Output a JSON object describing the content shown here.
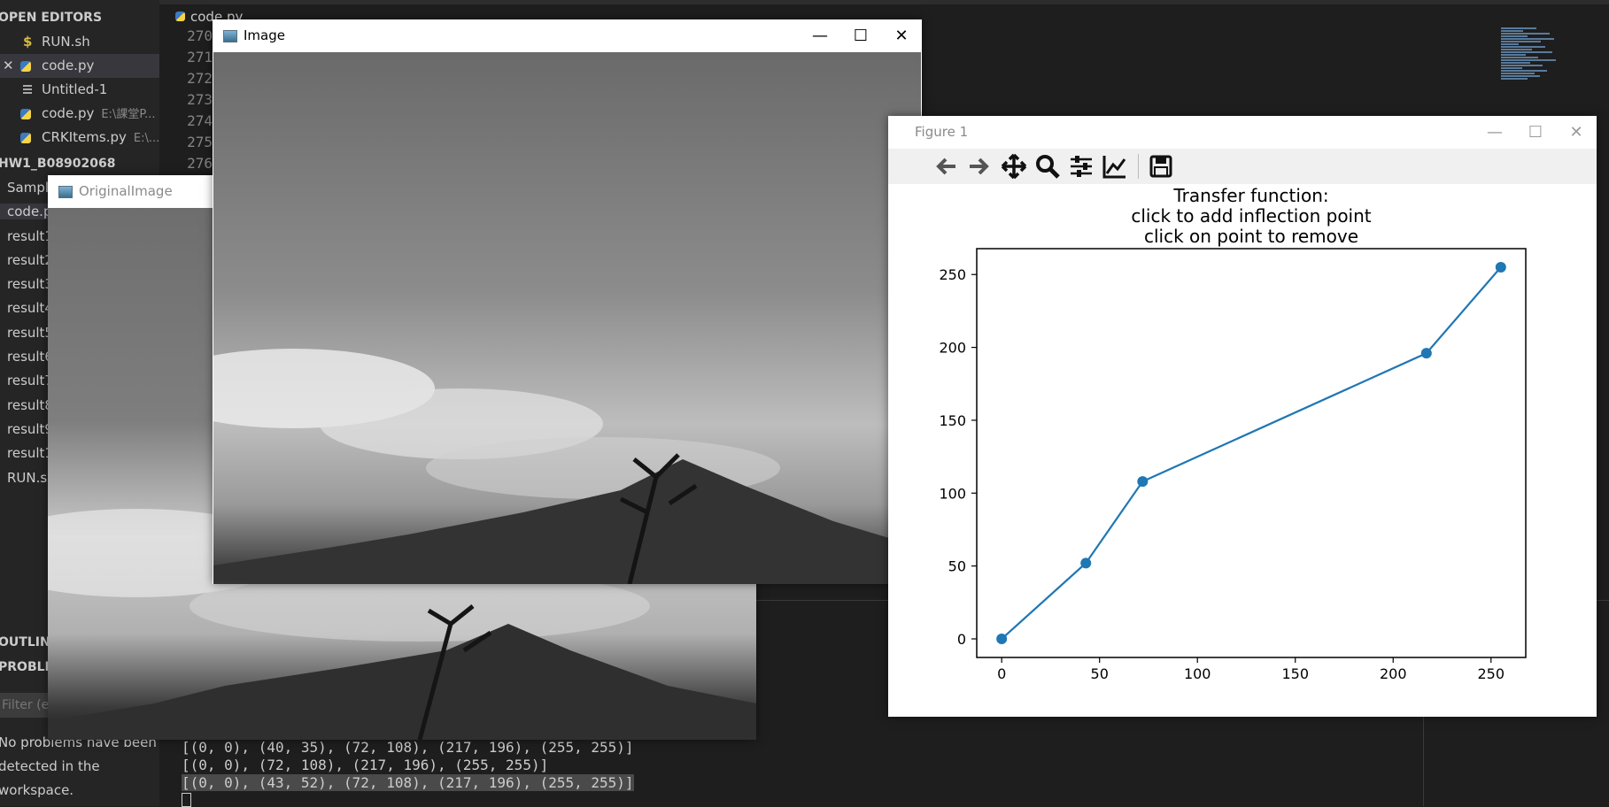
{
  "explorer": {
    "open_editors_title": "OPEN EDITORS",
    "open_editors": [
      {
        "name": "RUN.sh",
        "path": ""
      },
      {
        "name": "code.py",
        "path": ""
      },
      {
        "name": "Untitled-1",
        "path": ""
      },
      {
        "name": "code.py",
        "path": "E:\\課堂P..."
      },
      {
        "name": "CRKItems.py",
        "path": "E:\\..."
      }
    ],
    "folder_title": "HW1_B08902068",
    "files": [
      "Sampl",
      "code.p",
      "result1",
      "result2",
      "result3",
      "result4",
      "result5",
      "result6",
      "result7",
      "result8",
      "result9",
      "result1",
      "RUN.s"
    ],
    "outline_title": "OUTLINE",
    "problems_title": "PROBLEMS",
    "filter_placeholder": "Filter (e.g",
    "problems_message": [
      "No problems have been",
      "detected in the",
      "workspace."
    ]
  },
  "editor": {
    "tab_label": "code.py",
    "line_numbers": [
      "270",
      "271",
      "272",
      "273",
      "274",
      "275",
      "276"
    ]
  },
  "terminal": {
    "lines": [
      "[(0, 0), (40, 35), (72, 108), (217, 196), (255, 255)]",
      "[(0, 0), (72, 108), (217, 196), (255, 255)]",
      "[(0, 0), (43, 52), (72, 108), (217, 196), (255, 255)]"
    ]
  },
  "windows": {
    "image": {
      "title": "Image"
    },
    "original": {
      "title": "OriginalImage"
    },
    "figure": {
      "title": "Figure 1"
    }
  },
  "chart_data": {
    "type": "line",
    "title": "Transfer function:\nclick to add inflection point\nclick on point to remove",
    "title_lines": [
      "Transfer function:",
      "click to add inflection point",
      "click on point to remove"
    ],
    "x": [
      0,
      43,
      72,
      217,
      255
    ],
    "y": [
      0,
      52,
      108,
      196,
      255
    ],
    "xlim": [
      -12.75,
      267.75
    ],
    "ylim": [
      -12.75,
      267.75
    ],
    "xticks": [
      0,
      50,
      100,
      150,
      200,
      250
    ],
    "yticks": [
      0,
      50,
      100,
      150,
      200,
      250
    ],
    "color": "#1f77b4",
    "grid": false
  }
}
